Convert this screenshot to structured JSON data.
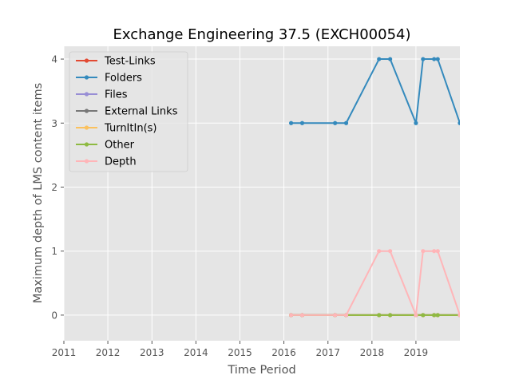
{
  "chart_data": {
    "type": "line",
    "title": "Exchange Engineering 37.5 (EXCH00054)",
    "xlabel": "Time Period",
    "ylabel": "Maximum depth of LMS content items",
    "xlim": [
      "2011-01-01",
      "2020-01-01"
    ],
    "ylim": [
      -0.4,
      4.2
    ],
    "x_ticks": [
      "2011",
      "2012",
      "2013",
      "2014",
      "2015",
      "2016",
      "2017",
      "2018",
      "2019"
    ],
    "y_ticks": [
      0,
      1,
      2,
      3,
      4
    ],
    "grid": true,
    "legend_position": "top-left",
    "background": "#E5E5E5",
    "x": [
      "2016-03-01",
      "2016-06-01",
      "2017-03-01",
      "2017-06-01",
      "2018-03-01",
      "2018-06-01",
      "2019-01-01",
      "2019-03-01",
      "2019-06-01",
      "2019-07-01",
      "2020-01-01"
    ],
    "series": [
      {
        "name": "Test-Links",
        "color": "#E24A33",
        "values": [
          0,
          0,
          0,
          0,
          0,
          0,
          0,
          0,
          0,
          0,
          0
        ]
      },
      {
        "name": "Folders",
        "color": "#348ABD",
        "values": [
          3,
          3,
          3,
          3,
          4,
          4,
          3,
          4,
          4,
          4,
          3
        ]
      },
      {
        "name": "Files",
        "color": "#988ED5",
        "values": [
          0,
          0,
          0,
          0,
          0,
          0,
          0,
          0,
          0,
          0,
          0
        ]
      },
      {
        "name": "External Links",
        "color": "#777777",
        "values": [
          0,
          0,
          0,
          0,
          0,
          0,
          0,
          0,
          0,
          0,
          0
        ]
      },
      {
        "name": "TurnItIn(s)",
        "color": "#FBC15E",
        "values": [
          0,
          0,
          0,
          0,
          0,
          0,
          0,
          0,
          0,
          0,
          0
        ]
      },
      {
        "name": "Other",
        "color": "#8EBA42",
        "values": [
          0,
          0,
          0,
          0,
          0,
          0,
          0,
          0,
          0,
          0,
          0
        ]
      },
      {
        "name": "Depth",
        "color": "#FFB5B8",
        "values": [
          0,
          0,
          0,
          0,
          1,
          1,
          0,
          1,
          1,
          1,
          0
        ]
      }
    ]
  }
}
